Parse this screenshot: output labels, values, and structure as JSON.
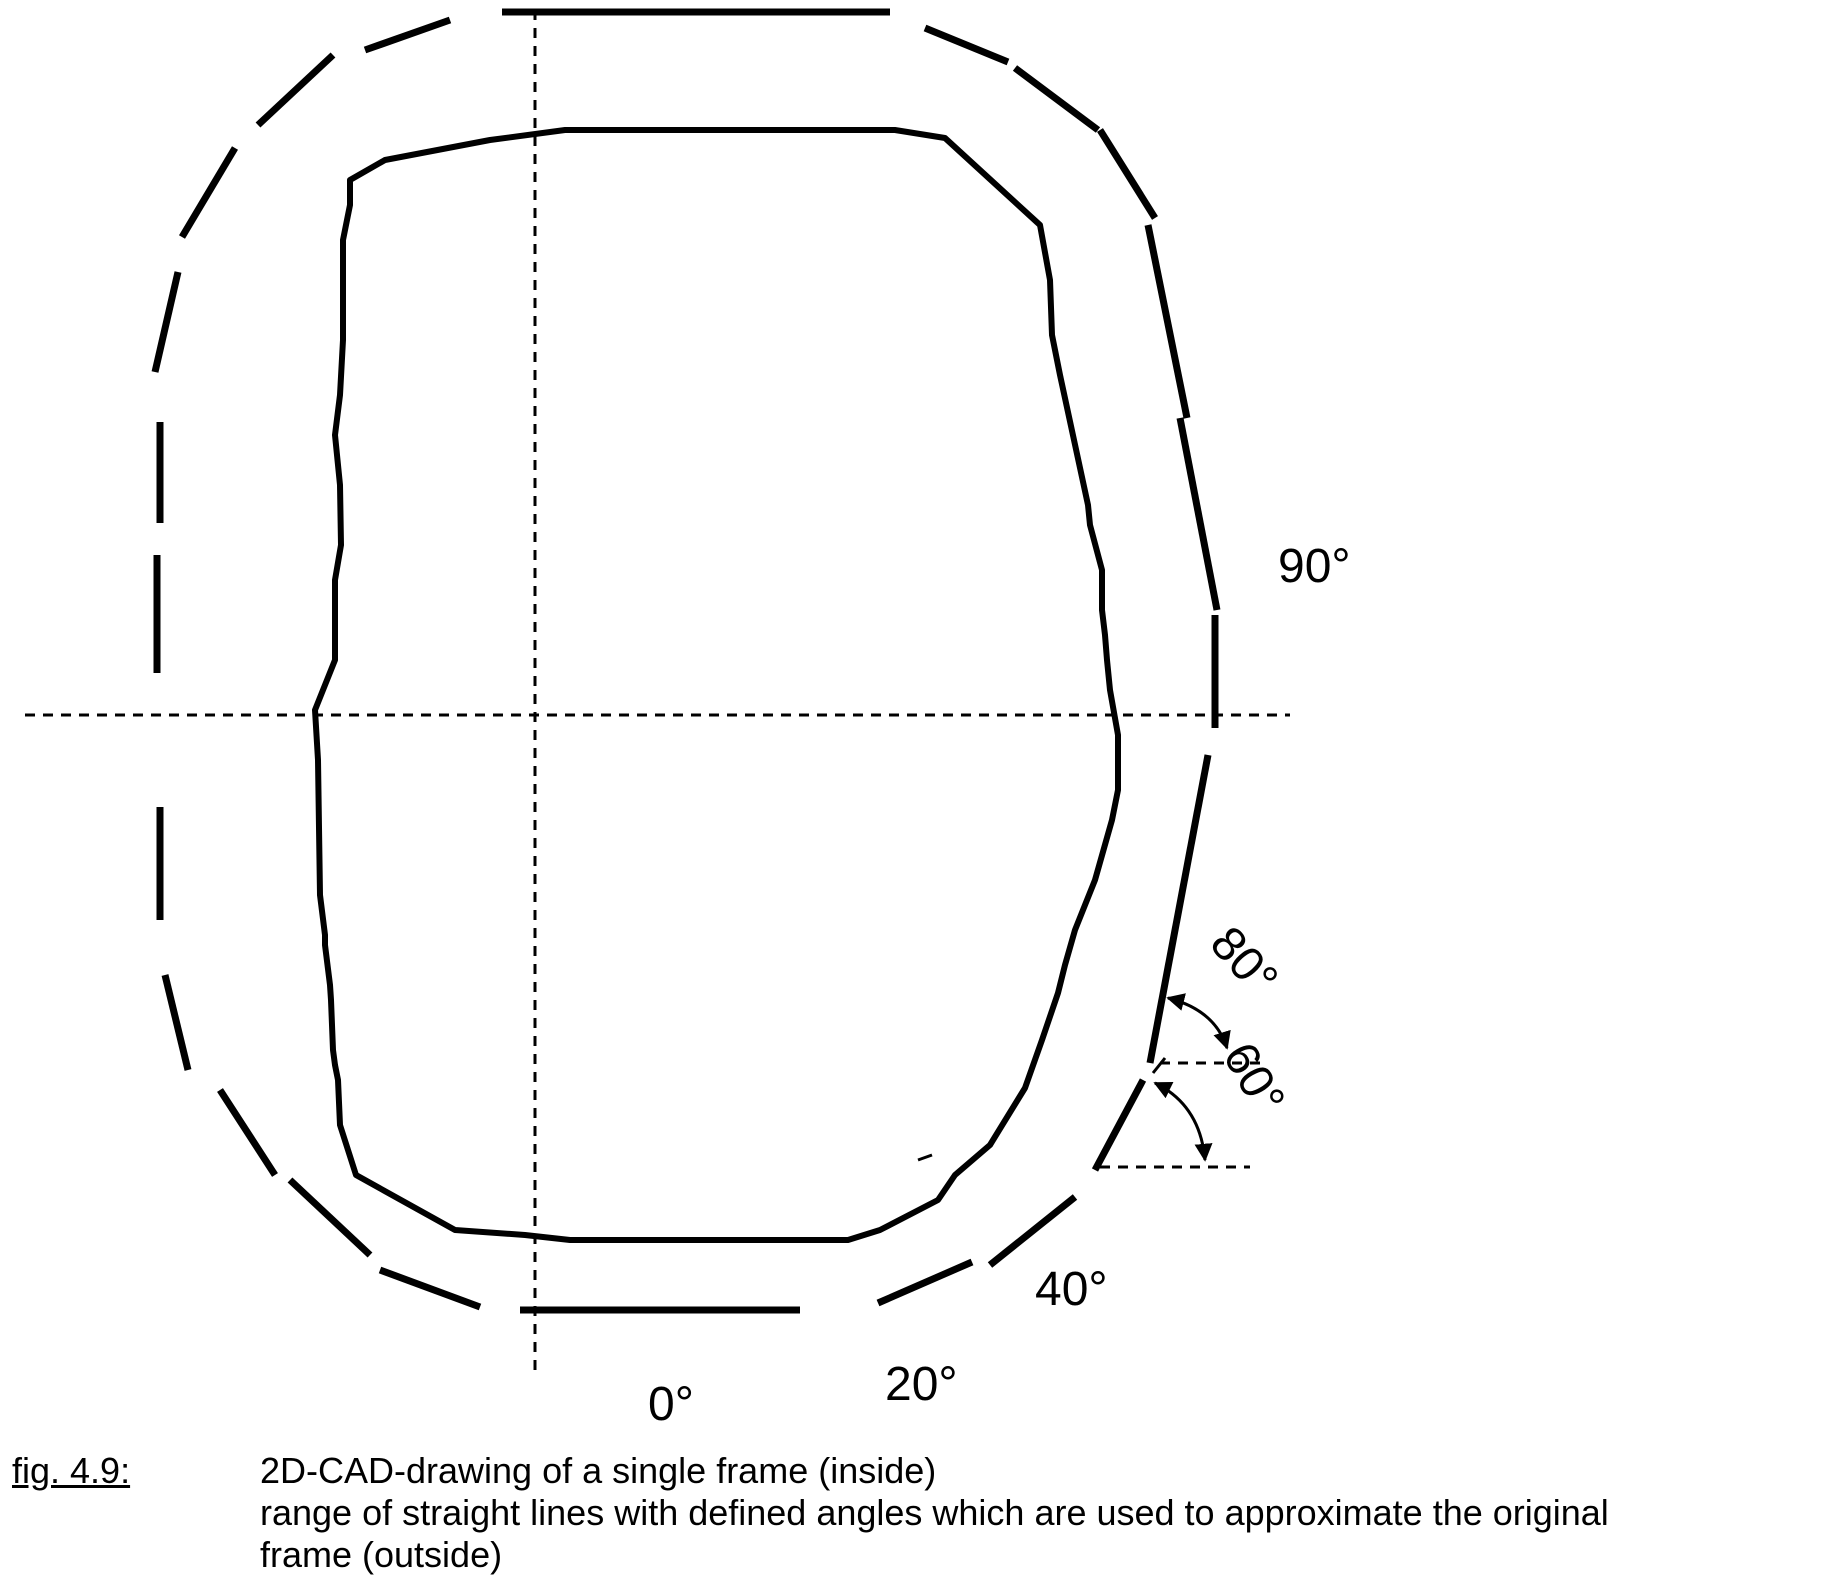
{
  "diagram": {
    "angle_labels": {
      "deg0": "0°",
      "deg20": "20°",
      "deg40": "40°",
      "deg60": "60°",
      "deg80": "80°",
      "deg90": "90°"
    },
    "colors": {
      "line": "#000000",
      "background": "#ffffff"
    }
  },
  "caption": {
    "figure_ref": "fig. 4.9:",
    "line1": "2D-CAD-drawing of a single frame (inside)",
    "line2": "range of straight lines with defined angles which are used to approximate the original",
    "line3": "frame (outside)"
  }
}
